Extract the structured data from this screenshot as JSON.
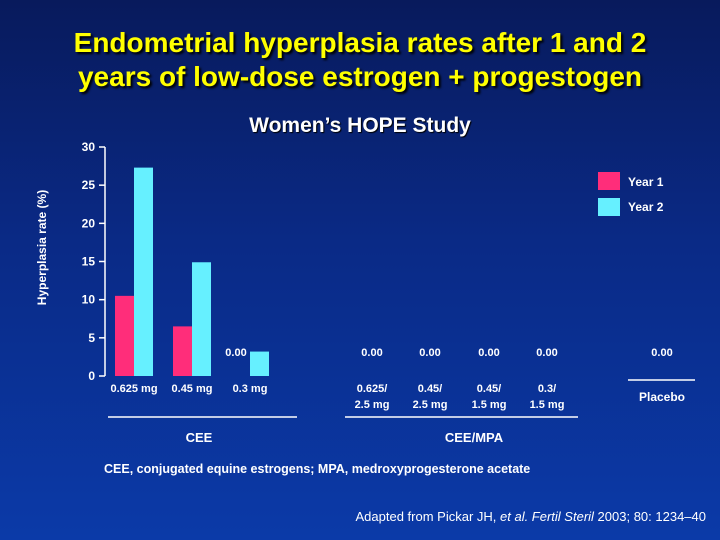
{
  "slide": {
    "title_line1": "Endometrial hyperplasia rates after 1 and 2",
    "title_line2": "years of low-dose estrogen + progestogen",
    "subtitle": "Women’s HOPE Study",
    "footnote": "CEE, conjugated equine estrogens; MPA, medroxyprogesterone acetate",
    "source_prefix": "Adapted from Pickar JH, ",
    "source_italic": "et al. Fertil Steril",
    "source_suffix": " 2003; 80: 1234–40"
  },
  "colors": {
    "year1": "#ff2d7a",
    "year2": "#66f0ff",
    "axis": "#ffffff"
  },
  "chart_data": {
    "type": "bar",
    "ylabel": "Hyperplasia rate (%)",
    "ylim": [
      0,
      30
    ],
    "yticks": [
      0,
      5,
      10,
      15,
      20,
      25,
      30
    ],
    "grid": false,
    "legend_position": "top-right",
    "categories": [
      {
        "label": [
          "0.625 mg"
        ],
        "group": "CEE"
      },
      {
        "label": [
          "0.45 mg"
        ],
        "group": "CEE"
      },
      {
        "label": [
          "0.3 mg"
        ],
        "group": "CEE"
      },
      {
        "label": [
          "0.625/",
          "2.5 mg"
        ],
        "group": "CEE/MPA"
      },
      {
        "label": [
          "0.45/",
          "2.5 mg"
        ],
        "group": "CEE/MPA"
      },
      {
        "label": [
          "0.45/",
          "1.5 mg"
        ],
        "group": "CEE/MPA"
      },
      {
        "label": [
          "0.3/",
          "1.5 mg"
        ],
        "group": "CEE/MPA"
      },
      {
        "label": [
          "Placebo"
        ],
        "group": ""
      }
    ],
    "groups": [
      "CEE",
      "CEE/MPA"
    ],
    "series": [
      {
        "name": "Year 1",
        "values": [
          10.5,
          6.5,
          0,
          0,
          0,
          0,
          0,
          0
        ]
      },
      {
        "name": "Year 2",
        "values": [
          27.3,
          14.9,
          3.2,
          0,
          0,
          0,
          0,
          0
        ]
      }
    ],
    "zero_labels": [
      "0.00",
      "0.00",
      "0.00",
      "0.00",
      "0.00",
      "0.00"
    ]
  }
}
